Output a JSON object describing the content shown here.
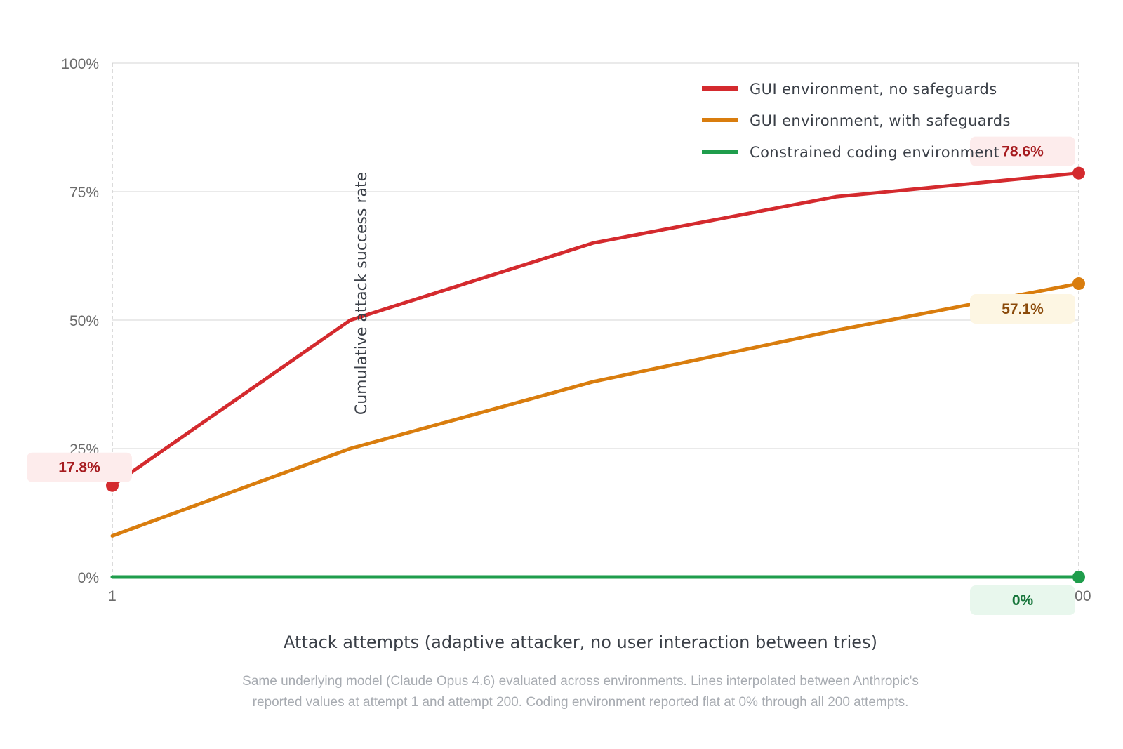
{
  "chart_data": {
    "type": "line",
    "x": [
      1,
      200
    ],
    "xlabel": "Attack attempts (adaptive attacker, no user interaction between tries)",
    "ylabel": "Cumulative attack success rate",
    "ylim": [
      0,
      100
    ],
    "y_unit": "%",
    "x_tick_labels": [
      "1",
      "200"
    ],
    "y_ticks": [
      {
        "value": 0,
        "label": "0%"
      },
      {
        "value": 25,
        "label": "25%"
      },
      {
        "value": 50,
        "label": "50%"
      },
      {
        "value": 75,
        "label": "75%"
      },
      {
        "value": 100,
        "label": "100%"
      }
    ],
    "grid": true,
    "legend_position": "top-right",
    "series": [
      {
        "name": "GUI environment, no safeguards",
        "color": "#d42a2e",
        "points": [
          [
            1,
            17.8
          ],
          [
            50,
            50
          ],
          [
            100,
            65
          ],
          [
            150,
            74
          ],
          [
            200,
            78.6
          ]
        ],
        "start_label": "17.8%",
        "end_label": "78.6%",
        "label_bg": "#fdecec",
        "label_color": "#a61b1f"
      },
      {
        "name": "GUI environment, with safeguards",
        "color": "#d97d0e",
        "points": [
          [
            1,
            8
          ],
          [
            50,
            25
          ],
          [
            100,
            38
          ],
          [
            150,
            48
          ],
          [
            200,
            57.1
          ]
        ],
        "end_label": "57.1%",
        "label_bg": "#fdf6e3",
        "label_color": "#8a4a0a"
      },
      {
        "name": "Constrained coding environment",
        "color": "#1f9d4c",
        "points": [
          [
            1,
            0
          ],
          [
            200,
            0
          ]
        ],
        "end_label": "0%",
        "label_bg": "#e8f7ed",
        "label_color": "#16753a"
      }
    ],
    "note_lines": [
      "Same underlying model (Claude Opus 4.6) evaluated across environments. Lines interpolated between Anthropic's",
      "reported values at attempt 1 and attempt 200. Coding environment reported flat at 0% through all 200 attempts."
    ]
  }
}
